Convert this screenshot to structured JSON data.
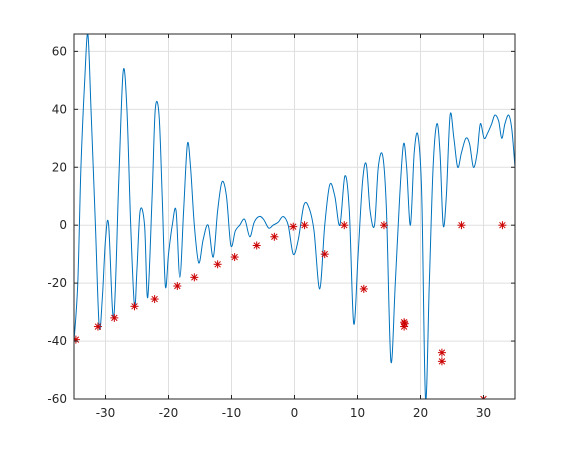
{
  "chart_data": {
    "type": "line",
    "title": "",
    "xlabel": "",
    "ylabel": "",
    "xlim": [
      -35,
      35
    ],
    "ylim": [
      -60,
      66
    ],
    "grid": true,
    "box": true,
    "xticks": [
      -30,
      -20,
      -10,
      0,
      10,
      20,
      30
    ],
    "yticks": [
      -60,
      -40,
      -20,
      0,
      20,
      40,
      60
    ],
    "xtick_labels": [
      "-30",
      "-20",
      "-10",
      "0",
      "10",
      "20",
      "30"
    ],
    "ytick_labels": [
      "-60",
      "-40",
      "-20",
      "0",
      "20",
      "40",
      "60"
    ],
    "series": [
      {
        "style": "line",
        "color": "#0072BD",
        "x": [
          -35,
          -34.4,
          -33.9,
          -33.3,
          -32.8,
          -32.3,
          -31.6,
          -31.0,
          -30.5,
          -30.0,
          -29.5,
          -28.7,
          -27.9,
          -27.2,
          -26.6,
          -26.0,
          -25.4,
          -25.0,
          -24.5,
          -23.8,
          -23.3,
          -22.6,
          -22.1,
          -21.5,
          -21.0,
          -20.5,
          -20.0,
          -19.4,
          -18.8,
          -18.2,
          -17.6,
          -17.0,
          -16.5,
          -15.9,
          -15.2,
          -14.5,
          -13.7,
          -12.9,
          -12.2,
          -11.5,
          -10.8,
          -10.1,
          -9.4,
          -8.7,
          -7.9,
          -7.1,
          -6.4,
          -5.6,
          -4.9,
          -4.1,
          -3.4,
          -2.6,
          -1.8,
          -1.0,
          -0.2,
          0.6,
          1.5,
          2.3,
          3.1,
          4.0,
          4.8,
          5.6,
          6.4,
          7.2,
          8.0,
          8.7,
          9.4,
          10.1,
          10.8,
          11.4,
          12.0,
          12.7,
          13.3,
          14.0,
          14.6,
          15.3,
          16.0,
          16.7,
          17.3,
          17.8,
          18.4,
          19.0,
          19.6,
          20.2,
          20.8,
          21.4,
          22.0,
          22.6,
          23.1,
          23.6,
          24.1,
          24.7,
          25.3,
          25.9,
          26.5,
          27.2,
          27.8,
          28.4,
          29.0,
          29.5,
          30.1,
          30.7,
          31.3,
          31.8,
          32.4,
          32.9,
          33.4,
          34.0,
          34.5,
          35.0
        ],
        "y": [
          -40,
          -20,
          20,
          50,
          66,
          40,
          0,
          -35,
          -25,
          -5,
          0,
          -32,
          15,
          53,
          40,
          0,
          -28,
          -15,
          5,
          0,
          -25,
          10,
          40,
          38,
          10,
          -21,
          -10,
          0,
          5,
          -18,
          5,
          28,
          20,
          0,
          -13,
          -5,
          0,
          -11,
          5,
          15,
          10,
          -7,
          -2,
          0,
          2,
          -4,
          1,
          3,
          2,
          -1,
          0,
          1,
          3,
          0,
          -10,
          -5,
          7,
          6,
          -2,
          -22,
          0,
          14,
          10,
          0,
          17,
          5,
          -34,
          -10,
          15,
          21,
          5,
          0,
          20,
          24,
          5,
          -47,
          -20,
          10,
          28,
          20,
          0,
          25,
          31,
          10,
          -60,
          -20,
          20,
          35,
          25,
          0,
          10,
          38,
          30,
          20,
          25,
          30,
          28,
          20,
          25,
          35,
          30,
          32,
          35,
          38,
          36,
          30,
          35,
          38,
          33,
          20
        ]
      },
      {
        "style": "markers",
        "marker": "*",
        "color": "#CC0000",
        "x": [
          -34.7,
          -31.2,
          -28.6,
          -25.4,
          -22.2,
          -18.6,
          -15.9,
          -12.2,
          -9.5,
          -6.0,
          -3.2,
          -0.2,
          1.6,
          4.8,
          7.9,
          11.0,
          14.2,
          17.4,
          17.4,
          17.5,
          23.4,
          23.4,
          26.5,
          30.0,
          33.0
        ],
        "y": [
          -39.5,
          -35,
          -32,
          -28,
          -25.5,
          -21,
          -18,
          -13.5,
          -11,
          -7,
          -4,
          -0.5,
          0,
          -10,
          0,
          -22,
          0,
          -33.5,
          -35,
          -34,
          -44,
          -47,
          0,
          -60,
          0
        ]
      }
    ]
  }
}
